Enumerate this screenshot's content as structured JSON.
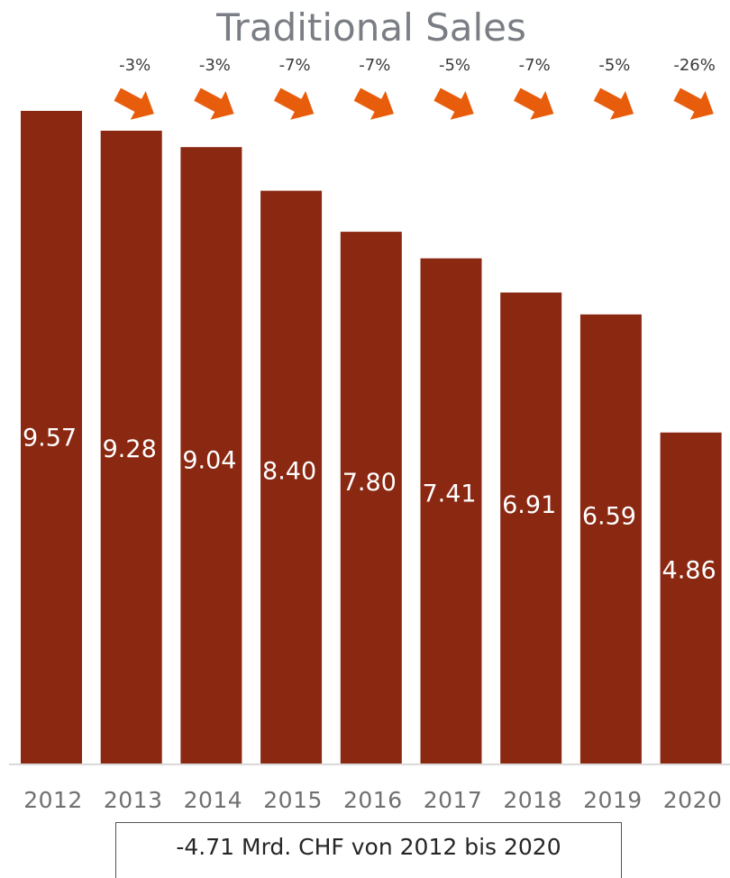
{
  "chart_data": {
    "type": "bar",
    "title": "Traditional Sales",
    "categories": [
      "2012",
      "2013",
      "2014",
      "2015",
      "2016",
      "2017",
      "2018",
      "2019",
      "2020"
    ],
    "values": [
      9.57,
      9.28,
      9.04,
      8.4,
      7.8,
      7.41,
      6.91,
      6.59,
      4.86
    ],
    "value_labels": [
      "9.57",
      "9.28",
      "9.04",
      "8.40",
      "7.80",
      "7.41",
      "6.91",
      "6.59",
      "4.86"
    ],
    "changes": [
      "-3%",
      "-3%",
      "-7%",
      "-7%",
      "-5%",
      "-7%",
      "-5%",
      "-26%"
    ],
    "annotation": "-4.71 Mrd. CHF von 2012 bis 2020",
    "ylim": [
      0,
      9.57
    ],
    "grid": false,
    "legend": "none",
    "colors": {
      "bar": "#8a2812",
      "arrow": "#e85d0c",
      "title": "#7a7e84",
      "axis": "#d9d9d9"
    }
  }
}
